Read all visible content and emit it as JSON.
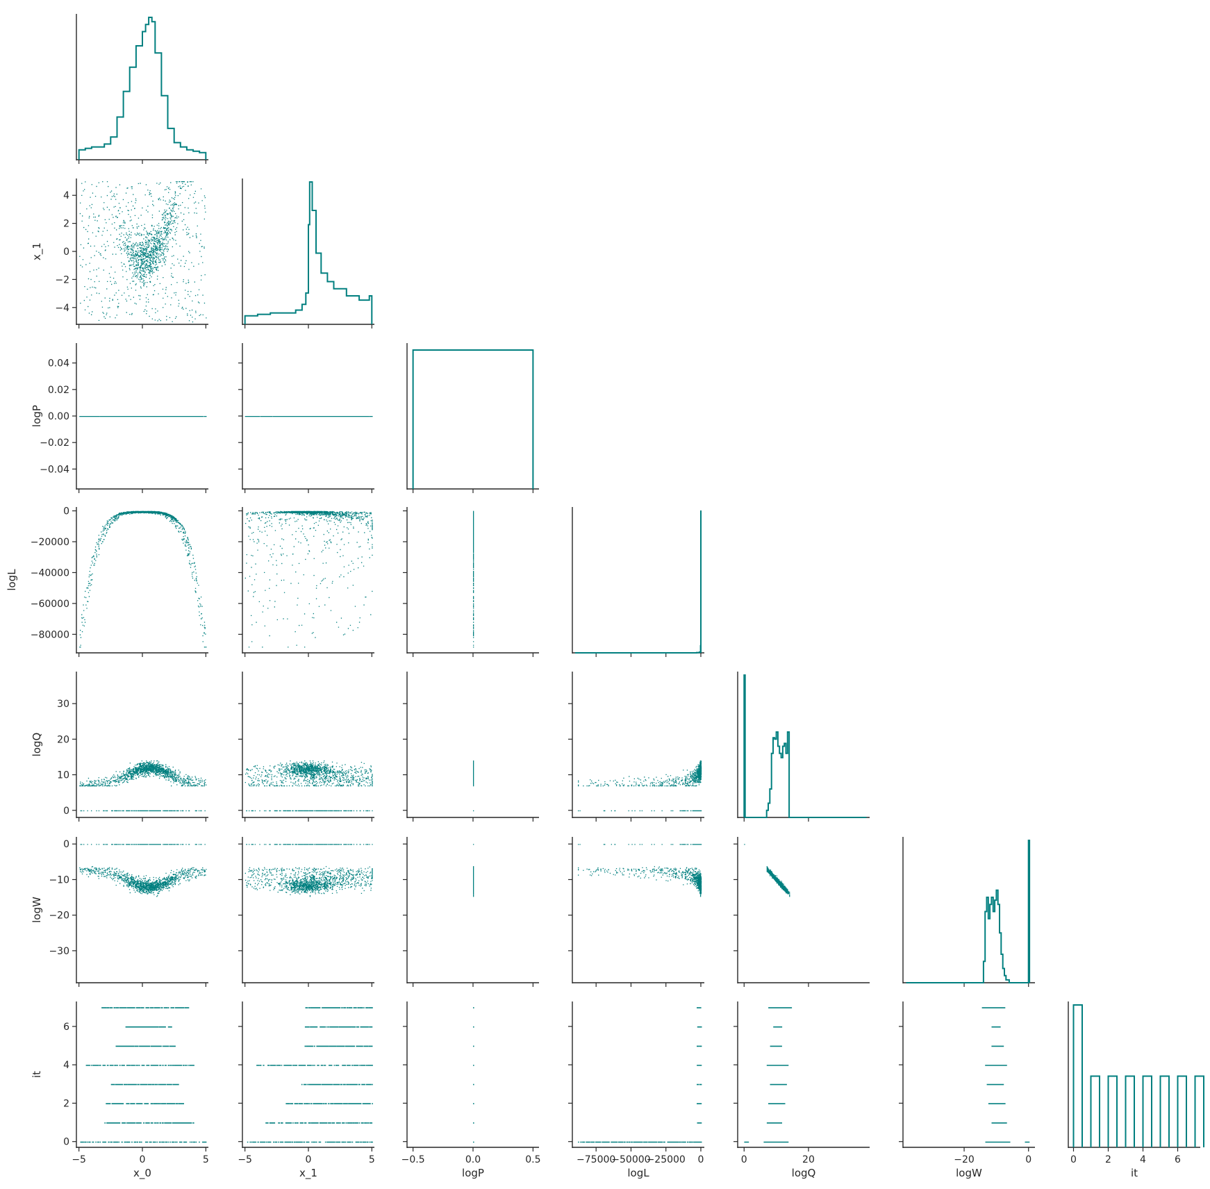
{
  "chart_data": {
    "type": "pairplot-corner",
    "color": "#007f7f",
    "variables": [
      "x_0",
      "x_1",
      "logP",
      "logL",
      "logQ",
      "logW",
      "it"
    ],
    "axis_labels": {
      "x": [
        "x_0",
        "x_1",
        "logP",
        "logL",
        "logQ",
        "logW",
        "it"
      ],
      "y": [
        "",
        "x_1",
        "logP",
        "logL",
        "logQ",
        "logW",
        "it"
      ]
    },
    "ranges": {
      "x_0": [
        -5.2,
        5.2
      ],
      "x_1": [
        -5.2,
        5.2
      ],
      "logP": [
        -0.55,
        0.55
      ],
      "logL": [
        -92000,
        2500
      ],
      "logQ": [
        -2,
        39
      ],
      "logW": [
        -39,
        2
      ],
      "it": [
        -0.3,
        7.3
      ]
    },
    "logP_y_range": [
      -0.055,
      0.055
    ],
    "ticks": {
      "x_0": [
        {
          "v": -5,
          "t": "−5"
        },
        {
          "v": 0,
          "t": "0"
        },
        {
          "v": 5,
          "t": "5"
        }
      ],
      "x_1": [
        {
          "v": -5,
          "t": "−5"
        },
        {
          "v": 0,
          "t": "0"
        },
        {
          "v": 5,
          "t": "5"
        }
      ],
      "x_1_y": [
        {
          "v": 4,
          "t": "4"
        },
        {
          "v": 2,
          "t": "2"
        },
        {
          "v": 0,
          "t": "0"
        },
        {
          "v": -2,
          "t": "−2"
        },
        {
          "v": -4,
          "t": "−4"
        }
      ],
      "logP_x": [
        {
          "v": -0.5,
          "t": "−0.5"
        },
        {
          "v": 0,
          "t": "0.0"
        },
        {
          "v": 0.5,
          "t": "0.5"
        }
      ],
      "logP_y": [
        {
          "v": 0.04,
          "t": "0.04"
        },
        {
          "v": 0.02,
          "t": "0.02"
        },
        {
          "v": 0,
          "t": "0.00"
        },
        {
          "v": -0.02,
          "t": "−0.02"
        },
        {
          "v": -0.04,
          "t": "−0.04"
        }
      ],
      "logL_x": [
        {
          "v": -75000,
          "t": "−75000"
        },
        {
          "v": -50000,
          "t": "−50000"
        },
        {
          "v": -25000,
          "t": "−25000"
        },
        {
          "v": 0,
          "t": "0"
        }
      ],
      "logL_y": [
        {
          "v": 0,
          "t": "0"
        },
        {
          "v": -20000,
          "t": "−20000"
        },
        {
          "v": -40000,
          "t": "−40000"
        },
        {
          "v": -60000,
          "t": "−60000"
        },
        {
          "v": -80000,
          "t": "−80000"
        }
      ],
      "logQ": [
        {
          "v": 0,
          "t": "0"
        },
        {
          "v": 10,
          "t": "10"
        },
        {
          "v": 20,
          "t": "20"
        },
        {
          "v": 30,
          "t": "30"
        }
      ],
      "logQ_x": [
        {
          "v": 0,
          "t": "0"
        },
        {
          "v": 20,
          "t": "20"
        }
      ],
      "logW_y": [
        {
          "v": 0,
          "t": "0"
        },
        {
          "v": -10,
          "t": "−10"
        },
        {
          "v": -20,
          "t": "−20"
        },
        {
          "v": -30,
          "t": "−30"
        }
      ],
      "logW_x": [
        {
          "v": -20,
          "t": "−20"
        },
        {
          "v": 0,
          "t": "0"
        }
      ],
      "it_y": [
        {
          "v": 6,
          "t": "6"
        },
        {
          "v": 4,
          "t": "4"
        },
        {
          "v": 2,
          "t": "2"
        },
        {
          "v": 0,
          "t": "0"
        }
      ],
      "it_x": [
        {
          "v": 0,
          "t": "0"
        },
        {
          "v": 2,
          "t": "2"
        },
        {
          "v": 4,
          "t": "4"
        },
        {
          "v": 6,
          "t": "6"
        }
      ]
    },
    "histograms": {
      "x_0": {
        "x": [
          -5,
          -4.5,
          -4,
          -3.5,
          -3,
          -2.5,
          -2,
          -1.5,
          -1,
          -0.5,
          0,
          0.25,
          0.5,
          0.75,
          1,
          1.5,
          2,
          2.5,
          3,
          3.5,
          4,
          4.5,
          5
        ],
        "y": [
          0.07,
          0.08,
          0.09,
          0.09,
          0.11,
          0.16,
          0.3,
          0.48,
          0.65,
          0.8,
          0.9,
          0.95,
          1.0,
          0.97,
          0.75,
          0.45,
          0.22,
          0.12,
          0.09,
          0.07,
          0.06,
          0.05,
          0.04
        ]
      },
      "x_1": {
        "x": [
          -5,
          -4,
          -3,
          -2,
          -1,
          -0.5,
          -0.2,
          0,
          0.1,
          0.3,
          0.6,
          1,
          1.5,
          2,
          3,
          4,
          4.8,
          5
        ],
        "y": [
          0.06,
          0.07,
          0.08,
          0.08,
          0.1,
          0.14,
          0.22,
          0.7,
          1.0,
          0.8,
          0.5,
          0.36,
          0.3,
          0.25,
          0.2,
          0.17,
          0.2,
          0.18
        ]
      },
      "logP": {
        "x": [
          -0.5,
          0.5
        ],
        "y": [
          1.0,
          1.0
        ]
      },
      "logL": {
        "x": [
          -90000,
          -60000,
          -30000,
          -8000,
          -3000,
          -1000,
          -200,
          0
        ],
        "y": [
          0,
          0,
          0,
          0,
          0.002,
          0.005,
          0.05,
          1.0
        ]
      },
      "logQ": {
        "x": [
          0,
          0.3,
          6,
          7,
          7.5,
          8,
          8.5,
          9,
          9.5,
          10,
          10.5,
          11,
          11.5,
          12,
          12.5,
          13,
          13.5,
          14,
          15,
          20,
          30,
          38
        ],
        "y": [
          1.0,
          0,
          0,
          0.05,
          0.1,
          0.2,
          0.45,
          0.56,
          0.55,
          0.6,
          0.5,
          0.45,
          0.42,
          0.5,
          0.52,
          0.45,
          0.6,
          0,
          0,
          0,
          0,
          0
        ]
      },
      "logW": {
        "x": [
          -38,
          -30,
          -20,
          -15,
          -14,
          -13.5,
          -13,
          -12.5,
          -12,
          -11.5,
          -11,
          -10.5,
          -10,
          -9.5,
          -9,
          -8.5,
          -8,
          -7.5,
          -7,
          -6,
          -0.4,
          0,
          0.3
        ],
        "y": [
          0,
          0,
          0,
          0,
          0.15,
          0.5,
          0.6,
          0.45,
          0.55,
          0.6,
          0.5,
          0.58,
          0.65,
          0.55,
          0.35,
          0.2,
          0.1,
          0.05,
          0.02,
          0,
          0,
          1.0,
          0
        ]
      },
      "it": {
        "bins": [
          0,
          1,
          2,
          3,
          4,
          5,
          6,
          7
        ],
        "counts": [
          1.0,
          0.5,
          0.5,
          0.5,
          0.5,
          0.5,
          0.5,
          0.5
        ]
      }
    },
    "it_levels": [
      0,
      1,
      2,
      3,
      4,
      5,
      6,
      7
    ],
    "it_spread_x0": [
      [
        -5,
        5
      ],
      [
        -3,
        4
      ],
      [
        -2.9,
        3.2
      ],
      [
        -2.5,
        2.8
      ],
      [
        -4.5,
        4.1
      ],
      [
        -2.2,
        2.6
      ],
      [
        -1.4,
        2.3
      ],
      [
        -3.3,
        3.6
      ]
    ],
    "it_spread_x1": [
      [
        -5,
        5
      ],
      [
        -3.4,
        5
      ],
      [
        -1.9,
        5
      ],
      [
        -0.6,
        5
      ],
      [
        -4.1,
        5
      ],
      [
        -0.4,
        5
      ],
      [
        -0.3,
        5
      ],
      [
        -0.3,
        5
      ]
    ],
    "it_spread_logQ": [
      [
        6,
        13.5
      ],
      [
        7,
        11.5
      ],
      [
        7.5,
        12.5
      ],
      [
        8,
        13
      ],
      [
        7,
        13.5
      ],
      [
        8,
        11.5
      ],
      [
        9,
        11.5
      ],
      [
        7.5,
        14.5
      ]
    ],
    "it_spread_logW": [
      [
        -13.5,
        -6
      ],
      [
        -11.5,
        -7
      ],
      [
        -12.5,
        -7.5
      ],
      [
        -13,
        -8
      ],
      [
        -13.5,
        -7
      ],
      [
        -11.5,
        -8
      ],
      [
        -11.5,
        -9
      ],
      [
        -14.5,
        -7.5
      ]
    ]
  }
}
